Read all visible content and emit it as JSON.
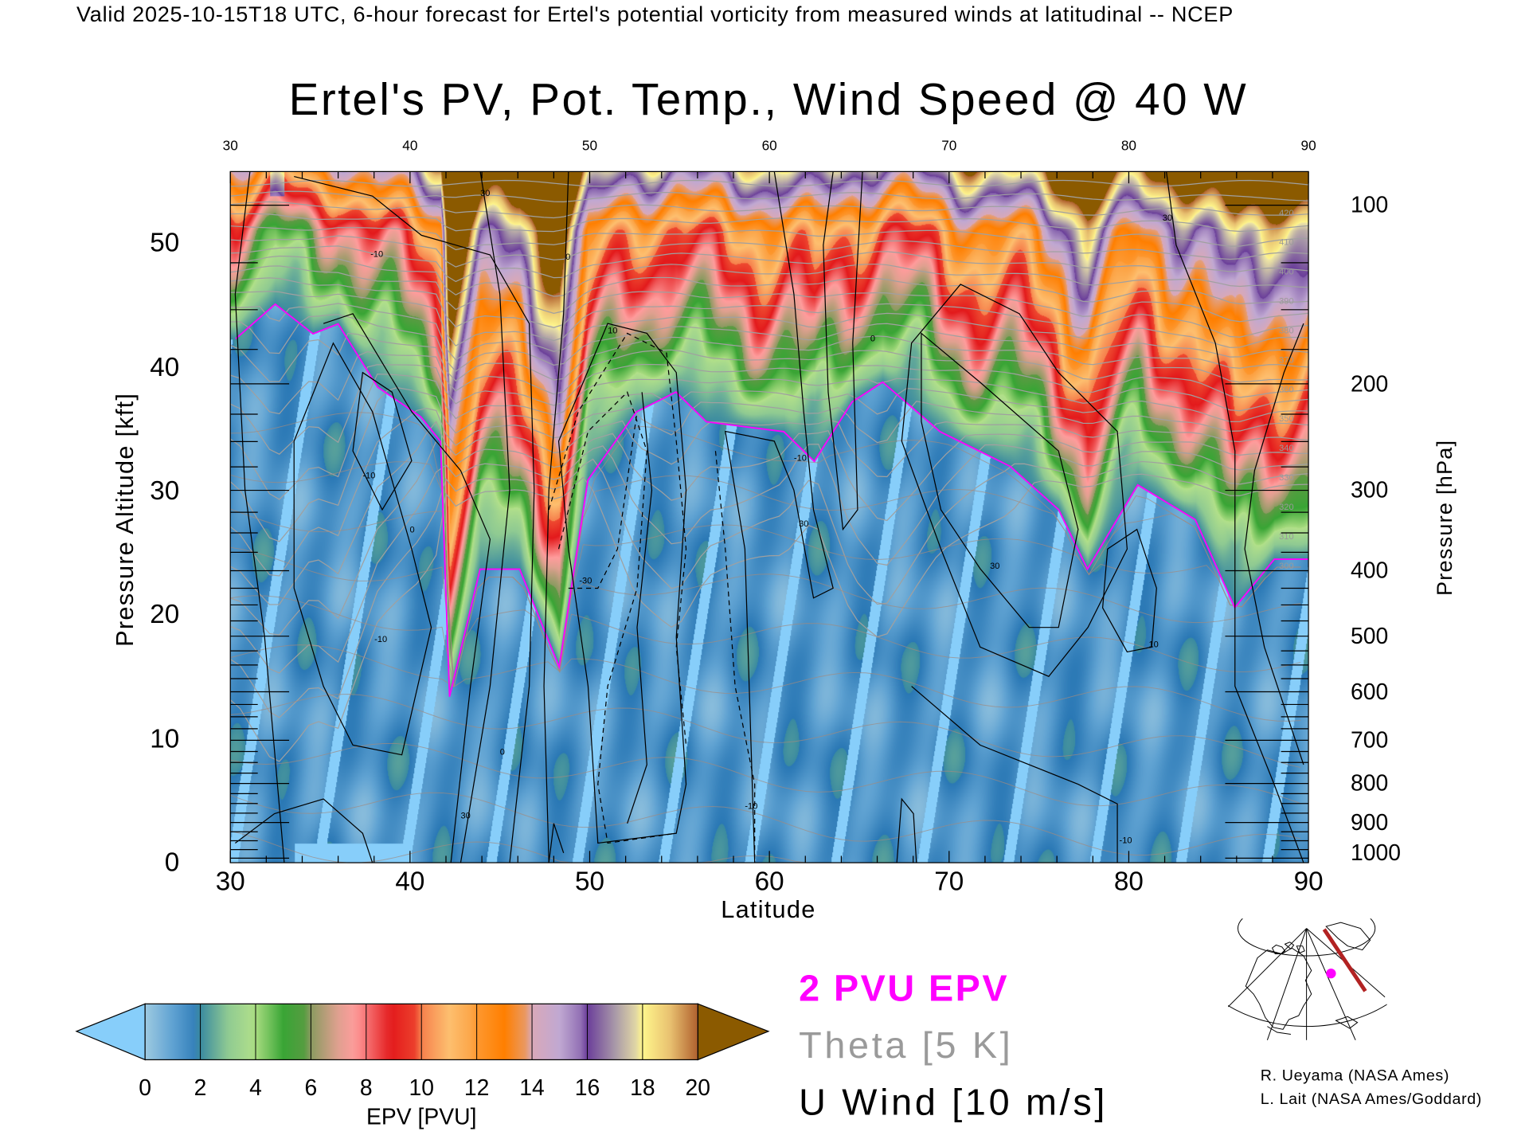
{
  "header": {
    "valid_line": "Valid 2025-10-15T18 UTC, 6-hour forecast for Ertel's potential vorticity from measured winds at latitudinal -- NCEP"
  },
  "chart_data": {
    "type": "heatmap",
    "title": "Ertel's PV, Pot. Temp., Wind Speed @ 40 W",
    "xlabel": "Latitude",
    "xlim": [
      30,
      90
    ],
    "x_ticks": [
      "30",
      "40",
      "50",
      "60",
      "70",
      "80",
      "90"
    ],
    "ylabel_left": "Pressure Altitude [kft]",
    "ylim_left": [
      0,
      55.8
    ],
    "y_ticks_left": [
      "0",
      "10",
      "20",
      "30",
      "40",
      "50"
    ],
    "ylabel_right": "Pressure [hPa]",
    "y_ticks_right": [
      "100",
      "200",
      "300",
      "400",
      "500",
      "600",
      "700",
      "800",
      "900",
      "1000"
    ],
    "grid": false,
    "colorbar": {
      "label": "EPV [PVU]",
      "ticks": [
        "0",
        "2",
        "4",
        "6",
        "8",
        "10",
        "12",
        "14",
        "16",
        "18",
        "20"
      ],
      "range": [
        0,
        20
      ],
      "under_color": "#87cefa",
      "over_color": "#8b5a00"
    },
    "two_pvu_line": {
      "color": "#ff00ff",
      "lat": [
        30.3,
        32.5,
        34.6,
        36.0,
        38.2,
        40.6,
        41.7,
        42.2,
        43.9,
        46.1,
        48.3,
        49.9,
        52.6,
        54.8,
        56.5,
        60.8,
        62.5,
        64.6,
        66.3,
        69.5,
        73.4,
        76.1,
        77.7,
        80.5,
        83.7,
        85.9,
        88.1,
        90.0
      ],
      "kft": [
        42.3,
        45.1,
        42.7,
        43.5,
        38.4,
        36.0,
        34.0,
        13.4,
        23.7,
        23.7,
        15.8,
        30.9,
        36.4,
        38.0,
        35.6,
        34.8,
        32.4,
        37.2,
        38.8,
        34.8,
        32.0,
        28.5,
        23.7,
        30.5,
        27.7,
        20.6,
        24.5,
        24.5
      ]
    },
    "theta_labels": [
      "300",
      "310",
      "320",
      "330",
      "340",
      "350",
      "360",
      "370",
      "380",
      "390",
      "400",
      "410",
      "420"
    ],
    "wind_labels": [
      "-30",
      "-10",
      "0",
      "10",
      "30",
      "50"
    ],
    "legend": {
      "pvu": "2 PVU EPV",
      "theta": "Theta [5 K]",
      "wind": "U Wind [10 m/s]",
      "pvu_color": "#ff00ff",
      "theta_color": "#9a9a9a",
      "wind_color": "#000000"
    }
  },
  "locator_map": {
    "track_color": "#b22222",
    "point_color": "#ff00ff"
  },
  "credits": [
    "R. Ueyama (NASA Ames)",
    "L. Lait (NASA Ames/Goddard)"
  ]
}
